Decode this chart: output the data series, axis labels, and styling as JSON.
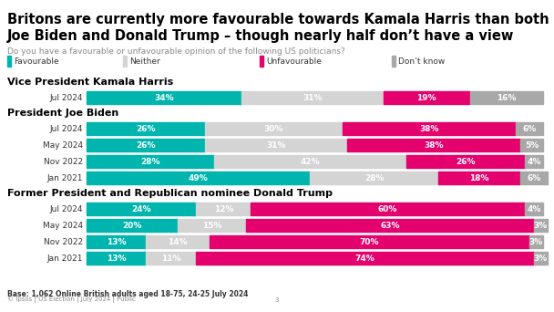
{
  "title_line1": "Britons are currently more favourable towards Kamala Harris than both",
  "title_line2": "Joe Biden and Donald Trump – though nearly half don’t have a view",
  "subtitle": "Do you have a favourable or unfavourable opinion of the following US politicians?",
  "legend_items": [
    "Favourable",
    "Neither",
    "Unfavourable",
    "Don’t know"
  ],
  "colors": {
    "favourable": "#00b5ad",
    "neither": "#d4d4d4",
    "unfavourable": "#e4006d",
    "dont_know": "#a8a8a8"
  },
  "sections": [
    {
      "label": "Vice President Kamala Harris",
      "rows": [
        {
          "year": "Jul 2024",
          "favourable": 34,
          "neither": 31,
          "unfavourable": 19,
          "dont_know": 16
        }
      ]
    },
    {
      "label": "President Joe Biden",
      "rows": [
        {
          "year": "Jul 2024",
          "favourable": 26,
          "neither": 30,
          "unfavourable": 38,
          "dont_know": 6
        },
        {
          "year": "May 2024",
          "favourable": 26,
          "neither": 31,
          "unfavourable": 38,
          "dont_know": 5
        },
        {
          "year": "Nov 2022",
          "favourable": 28,
          "neither": 42,
          "unfavourable": 26,
          "dont_know": 4
        },
        {
          "year": "Jan 2021",
          "favourable": 49,
          "neither": 28,
          "unfavourable": 18,
          "dont_know": 6
        }
      ]
    },
    {
      "label": "Former President and Republican nominee Donald Trump",
      "rows": [
        {
          "year": "Jul 2024",
          "favourable": 24,
          "neither": 12,
          "unfavourable": 60,
          "dont_know": 4
        },
        {
          "year": "May 2024",
          "favourable": 20,
          "neither": 15,
          "unfavourable": 63,
          "dont_know": 3
        },
        {
          "year": "Nov 2022",
          "favourable": 13,
          "neither": 14,
          "unfavourable": 70,
          "dont_know": 3
        },
        {
          "year": "Jan 2021",
          "favourable": 13,
          "neither": 11,
          "unfavourable": 74,
          "dont_know": 3
        }
      ]
    }
  ],
  "footnote": "Base: 1,062 Online British adults aged 18-75, 24-25 July 2024",
  "footer_left": "© Ipsos | US Election | July 2024 | Public",
  "footer_center": "3",
  "background_color": "#ffffff",
  "title_fontsize": 10.5,
  "subtitle_fontsize": 6.5,
  "bar_label_fontsize": 6.5,
  "section_label_fontsize": 8,
  "row_label_fontsize": 6.5,
  "legend_fontsize": 6.5
}
